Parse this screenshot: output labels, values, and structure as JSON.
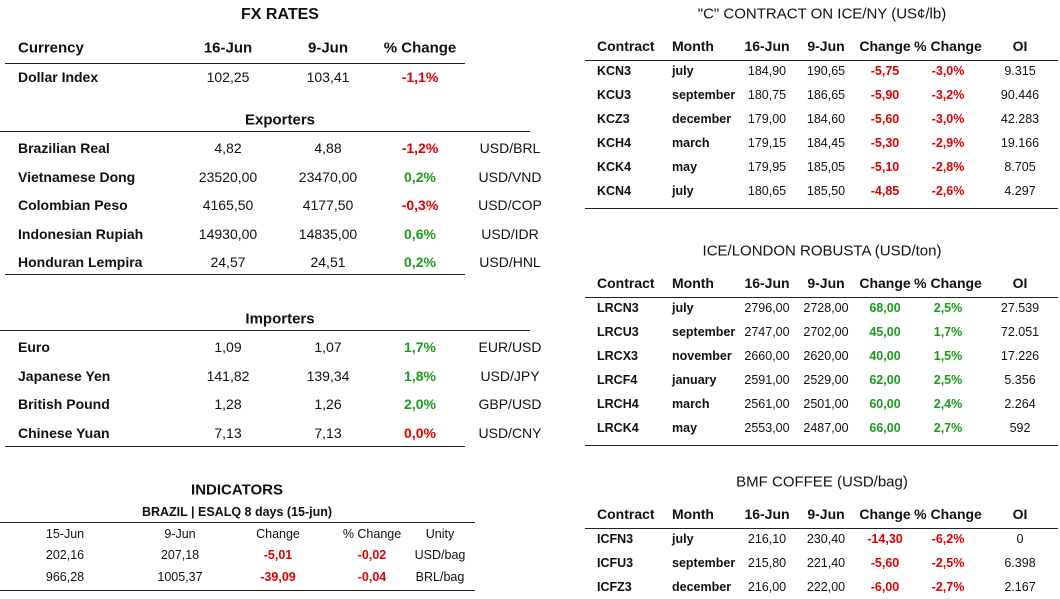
{
  "fx": {
    "title": "FX RATES",
    "header": [
      "Currency",
      "16-Jun",
      "9-Jun",
      "% Change"
    ],
    "dollar_index": {
      "cells": [
        "Dollar Index",
        "102,25",
        "103,41",
        "-1,1%"
      ],
      "color": "#e00000"
    },
    "exporters": {
      "title": "Exporters",
      "rows": [
        {
          "cells": [
            "Brazilian Real",
            "4,82",
            "4,88",
            "-1,2%",
            "USD/BRL"
          ],
          "color": "#e00000"
        },
        {
          "cells": [
            "Vietnamese Dong",
            "23520,00",
            "23470,00",
            "0,2%",
            "USD/VND"
          ],
          "color": "#1e9a1e"
        },
        {
          "cells": [
            "Colombian Peso",
            "4165,50",
            "4177,50",
            "-0,3%",
            "USD/COP"
          ],
          "color": "#e00000"
        },
        {
          "cells": [
            "Indonesian Rupiah",
            "14930,00",
            "14835,00",
            "0,6%",
            "USD/IDR"
          ],
          "color": "#1e9a1e"
        },
        {
          "cells": [
            "Honduran Lempira",
            "24,57",
            "24,51",
            "0,2%",
            "USD/HNL"
          ],
          "color": "#1e9a1e"
        }
      ]
    },
    "importers": {
      "title": "Importers",
      "rows": [
        {
          "cells": [
            "Euro",
            "1,09",
            "1,07",
            "1,7%",
            "EUR/USD"
          ],
          "color": "#1e9a1e"
        },
        {
          "cells": [
            "Japanese Yen",
            "141,82",
            "139,34",
            "1,8%",
            "USD/JPY"
          ],
          "color": "#1e9a1e"
        },
        {
          "cells": [
            "British Pound",
            "1,28",
            "1,26",
            "2,0%",
            "GBP/USD"
          ],
          "color": "#1e9a1e"
        },
        {
          "cells": [
            "Chinese Yuan",
            "7,13",
            "7,13",
            "0,0%",
            "USD/CNY"
          ],
          "color": "#e00000"
        }
      ]
    }
  },
  "indicators": {
    "title": "INDICATORS",
    "subtitle": "BRAZIL | ESALQ 8 days (15-jun)",
    "header": [
      "15-Jun",
      "9-Jun",
      "Change",
      "% Change",
      "Unity"
    ],
    "rows": [
      {
        "cells": [
          "202,16",
          "207,18",
          "-5,01",
          "-0,02",
          "USD/bag"
        ],
        "color": "#e00000"
      },
      {
        "cells": [
          "966,28",
          "1005,37",
          "-39,09",
          "-0,04",
          "BRL/bag"
        ],
        "color": "#e00000"
      }
    ]
  },
  "contracts": [
    {
      "title": "\"C\" CONTRACT ON ICE/NY (US¢/lb)",
      "header": [
        "Contract",
        "Month",
        "16-Jun",
        "9-Jun",
        "Change",
        "% Change",
        "OI"
      ],
      "rows": [
        {
          "cells": [
            "KCN3",
            "july",
            "184,90",
            "190,65",
            "-5,75",
            "-3,0%",
            "9.315"
          ],
          "color": "#e00000"
        },
        {
          "cells": [
            "KCU3",
            "september",
            "180,75",
            "186,65",
            "-5,90",
            "-3,2%",
            "90.446"
          ],
          "color": "#e00000"
        },
        {
          "cells": [
            "KCZ3",
            "december",
            "179,00",
            "184,60",
            "-5,60",
            "-3,0%",
            "42.283"
          ],
          "color": "#e00000"
        },
        {
          "cells": [
            "KCH4",
            "march",
            "179,15",
            "184,45",
            "-5,30",
            "-2,9%",
            "19.166"
          ],
          "color": "#e00000"
        },
        {
          "cells": [
            "KCK4",
            "may",
            "179,95",
            "185,05",
            "-5,10",
            "-2,8%",
            "8.705"
          ],
          "color": "#e00000"
        },
        {
          "cells": [
            "KCN4",
            "july",
            "180,65",
            "185,50",
            "-4,85",
            "-2,6%",
            "4.297"
          ],
          "color": "#e00000"
        }
      ]
    },
    {
      "title": "ICE/LONDON ROBUSTA (USD/ton)",
      "header": [
        "Contract",
        "Month",
        "16-Jun",
        "9-Jun",
        "Change",
        "% Change",
        "OI"
      ],
      "rows": [
        {
          "cells": [
            "LRCN3",
            "july",
            "2796,00",
            "2728,00",
            "68,00",
            "2,5%",
            "27.539"
          ],
          "color": "#1e9a1e"
        },
        {
          "cells": [
            "LRCU3",
            "september",
            "2747,00",
            "2702,00",
            "45,00",
            "1,7%",
            "72.051"
          ],
          "color": "#1e9a1e"
        },
        {
          "cells": [
            "LRCX3",
            "november",
            "2660,00",
            "2620,00",
            "40,00",
            "1,5%",
            "17.226"
          ],
          "color": "#1e9a1e"
        },
        {
          "cells": [
            "LRCF4",
            "january",
            "2591,00",
            "2529,00",
            "62,00",
            "2,5%",
            "5.356"
          ],
          "color": "#1e9a1e"
        },
        {
          "cells": [
            "LRCH4",
            "march",
            "2561,00",
            "2501,00",
            "60,00",
            "2,4%",
            "2.264"
          ],
          "color": "#1e9a1e"
        },
        {
          "cells": [
            "LRCK4",
            "may",
            "2553,00",
            "2487,00",
            "66,00",
            "2,7%",
            "592"
          ],
          "color": "#1e9a1e"
        }
      ]
    },
    {
      "title": "BMF COFFEE (USD/bag)",
      "header": [
        "Contract",
        "Month",
        "16-Jun",
        "9-Jun",
        "Change",
        "% Change",
        "OI"
      ],
      "rows": [
        {
          "cells": [
            "ICFN3",
            "july",
            "216,10",
            "230,40",
            "-14,30",
            "-6,2%",
            "0"
          ],
          "color": "#e00000"
        },
        {
          "cells": [
            "ICFU3",
            "september",
            "215,80",
            "221,40",
            "-5,60",
            "-2,5%",
            "6.398"
          ],
          "color": "#e00000"
        },
        {
          "cells": [
            "ICFZ3",
            "december",
            "216,00",
            "222,00",
            "-6,00",
            "-2,7%",
            "2.167"
          ],
          "color": "#e00000"
        }
      ]
    }
  ]
}
